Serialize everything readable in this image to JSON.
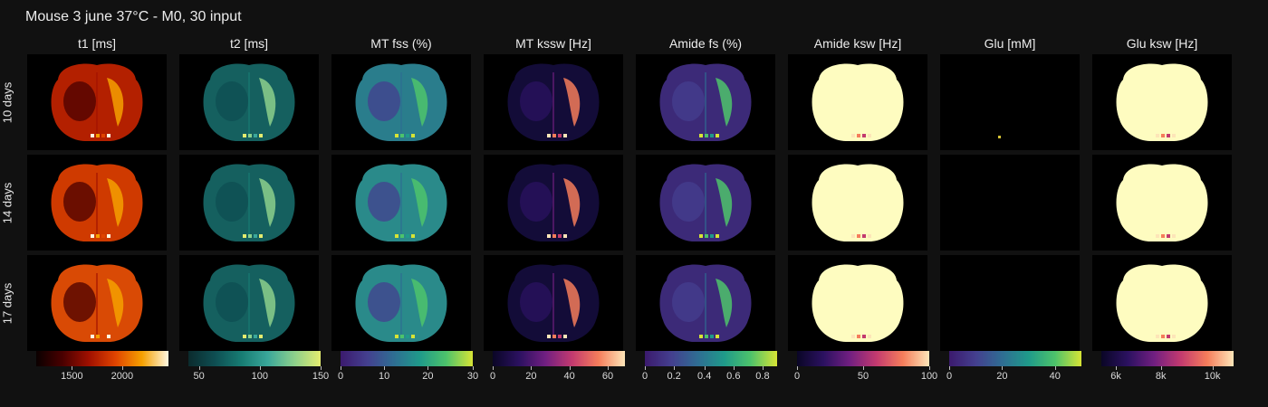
{
  "title": "Mouse 3 june 37°C - M0, 30 input",
  "rows": [
    "10 days",
    "14 days",
    "17 days"
  ],
  "columns": [
    {
      "title": "t1 [ms]",
      "colormap": "hot",
      "colors": [
        "#0a0000",
        "#4a0000",
        "#a01000",
        "#e04400",
        "#f5a000",
        "#fff7e0"
      ],
      "ticks": [
        "1500",
        "2000"
      ],
      "tick_fracs": [
        0.27,
        0.65
      ]
    },
    {
      "title": "t2 [ms]",
      "colormap": "teal",
      "colors": [
        "#0b2b2d",
        "#0e4e52",
        "#177c73",
        "#3aa79a",
        "#8cd08c",
        "#e4ec6f"
      ],
      "ticks": [
        "50",
        "100",
        "150"
      ],
      "tick_fracs": [
        0.08,
        0.54,
        1.0
      ]
    },
    {
      "title": "MT fss (%)",
      "colormap": "viridis",
      "colors": [
        "#3b1a6d",
        "#443f8f",
        "#2f6d93",
        "#1f9a8a",
        "#4dc36b",
        "#d7e435"
      ],
      "ticks": [
        "0",
        "10",
        "20",
        "30"
      ],
      "tick_fracs": [
        0.0,
        0.33,
        0.66,
        1.0
      ]
    },
    {
      "title": "MT kssw [Hz]",
      "colormap": "magma",
      "colors": [
        "#0a0626",
        "#2b1160",
        "#711f81",
        "#c33a6f",
        "#f57d5b",
        "#fde5b8"
      ],
      "ticks": [
        "0",
        "20",
        "40",
        "60"
      ],
      "tick_fracs": [
        0.0,
        0.29,
        0.58,
        0.87
      ]
    },
    {
      "title": "Amide fs (%)",
      "colormap": "viridis",
      "colors": [
        "#3b1a6d",
        "#443f8f",
        "#2f6d93",
        "#1f9a8a",
        "#4dc36b",
        "#d7e435"
      ],
      "ticks": [
        "0",
        "0.2",
        "0.4",
        "0.6",
        "0.8"
      ],
      "tick_fracs": [
        0.0,
        0.22,
        0.45,
        0.67,
        0.89
      ]
    },
    {
      "title": "Amide ksw [Hz]",
      "colormap": "magma",
      "colors": [
        "#0a0626",
        "#2b1160",
        "#711f81",
        "#c33a6f",
        "#f57d5b",
        "#fde5b8"
      ],
      "ticks": [
        "0",
        "50",
        "100"
      ],
      "tick_fracs": [
        0.0,
        0.5,
        1.0
      ]
    },
    {
      "title": "Glu [mM]",
      "colormap": "viridis",
      "colors": [
        "#3b1a6d",
        "#443f8f",
        "#2f6d93",
        "#1f9a8a",
        "#4dc36b",
        "#d7e435"
      ],
      "ticks": [
        "0",
        "20",
        "40"
      ],
      "tick_fracs": [
        0.0,
        0.4,
        0.8
      ]
    },
    {
      "title": "Glu ksw [Hz]",
      "colormap": "magma",
      "colors": [
        "#0a0626",
        "#2b1160",
        "#711f81",
        "#c33a6f",
        "#f57d5b",
        "#fde5b8"
      ],
      "ticks": [
        "6k",
        "8k",
        "10k"
      ],
      "tick_fracs": [
        0.11,
        0.45,
        0.84
      ]
    }
  ],
  "panel_fills": [
    [
      "#b32000",
      "#15605f",
      "#2a7d8c",
      "#130c38",
      "#3c2a78",
      "#fefcc0",
      "#000000",
      "#fefcc0"
    ],
    [
      "#cf3a00",
      "#15605f",
      "#2a8a8a",
      "#130c38",
      "#3c2a78",
      "#fefcc0",
      "#000000",
      "#fefcc0"
    ],
    [
      "#d94a05",
      "#15605f",
      "#2a8a8a",
      "#130c38",
      "#3c2a78",
      "#fefcc0",
      "#000000",
      "#fefcc0"
    ]
  ]
}
